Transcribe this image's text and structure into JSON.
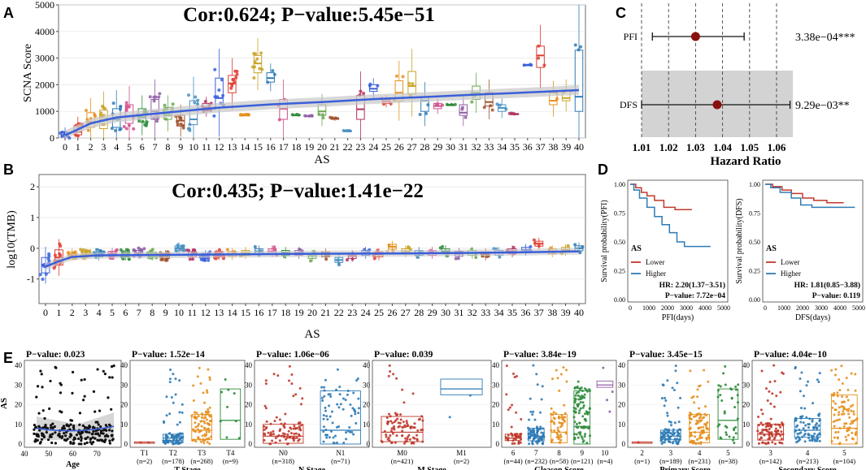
{
  "chart_data": [
    {
      "panel": "A",
      "type": "box",
      "title": "Cor:0.624; P−value:5.45e−51",
      "xlabel": "AS",
      "ylabel": "SCNA Score",
      "ylim": [
        0,
        5000
      ],
      "yticks": [
        0,
        1000,
        2000,
        3000,
        4000,
        5000
      ],
      "categories": [
        "0",
        "1",
        "2",
        "3",
        "4",
        "5",
        "6",
        "7",
        "8",
        "9",
        "10",
        "11",
        "12",
        "13",
        "14",
        "15",
        "16",
        "17",
        "18",
        "19",
        "20",
        "21",
        "22",
        "23",
        "24",
        "25",
        "26",
        "27",
        "28",
        "29",
        "30",
        "31",
        "32",
        "33",
        "34",
        "35",
        "36",
        "37",
        "38",
        "39",
        "40"
      ],
      "medians": [
        110,
        230,
        600,
        680,
        700,
        820,
        780,
        1000,
        850,
        650,
        700,
        1150,
        1500,
        2050,
        870,
        2800,
        2250,
        1100,
        870,
        820,
        1000,
        720,
        270,
        1080,
        1850,
        1380,
        1700,
        1950,
        1400,
        1200,
        1250,
        950,
        1700,
        1350,
        1130,
        900,
        2750,
        3100,
        1400,
        1500,
        1550
      ],
      "box_low": [
        40,
        120,
        400,
        350,
        400,
        550,
        600,
        700,
        700,
        450,
        500,
        1050,
        1150,
        1700,
        860,
        2450,
        2100,
        700,
        860,
        800,
        850,
        700,
        260,
        700,
        1750,
        1300,
        1400,
        1650,
        1000,
        1100,
        1240,
        850,
        1450,
        1200,
        1000,
        880,
        2740,
        2650,
        1250,
        1400,
        1000
      ],
      "box_high": [
        220,
        460,
        950,
        1050,
        1100,
        1250,
        1100,
        1450,
        1150,
        850,
        1400,
        1300,
        2250,
        2350,
        880,
        3100,
        2450,
        1450,
        880,
        850,
        1250,
        760,
        280,
        1600,
        2000,
        1450,
        2150,
        2500,
        1550,
        1300,
        1260,
        1250,
        1950,
        1700,
        1250,
        920,
        2760,
        3450,
        1700,
        1800,
        3300
      ],
      "smooth_fit": [
        [
          0,
          100
        ],
        [
          2,
          550
        ],
        [
          4,
          770
        ],
        [
          8,
          960
        ],
        [
          12,
          1140
        ],
        [
          16,
          1260
        ],
        [
          20,
          1350
        ],
        [
          24,
          1460
        ],
        [
          28,
          1540
        ],
        [
          32,
          1630
        ],
        [
          36,
          1710
        ],
        [
          40,
          1800
        ]
      ]
    },
    {
      "panel": "B",
      "type": "box",
      "title": "Cor:0.435; P−value:1.41e−22",
      "xlabel": "AS",
      "ylabel": "log10(TMB)",
      "ylim": [
        -1.8,
        2.4
      ],
      "yticks": [
        -1,
        0,
        1,
        2
      ],
      "categories": [
        "0",
        "1",
        "2",
        "3",
        "4",
        "5",
        "6",
        "7",
        "8",
        "9",
        "10",
        "11",
        "12",
        "13",
        "14",
        "15",
        "16",
        "17",
        "18",
        "19",
        "20",
        "21",
        "22",
        "23",
        "24",
        "25",
        "26",
        "27",
        "28",
        "29",
        "30",
        "31",
        "32",
        "33",
        "34",
        "35",
        "36",
        "37",
        "38",
        "39",
        "40"
      ],
      "medians": [
        -0.55,
        -0.3,
        -0.2,
        -0.2,
        -0.2,
        -0.18,
        -0.2,
        -0.15,
        -0.2,
        -0.25,
        0.0,
        -0.2,
        -0.25,
        -0.18,
        -0.18,
        -0.15,
        -0.1,
        -0.1,
        -0.15,
        -0.15,
        -0.25,
        -0.2,
        -0.38,
        -0.25,
        -0.15,
        -0.2,
        0.05,
        -0.1,
        -0.15,
        -0.15,
        -0.1,
        -0.18,
        -0.15,
        -0.2,
        -0.15,
        -0.1,
        -0.05,
        0.15,
        -0.1,
        -0.05,
        0.0
      ],
      "smooth_fit": [
        [
          0,
          -0.6
        ],
        [
          1,
          -0.42
        ],
        [
          2,
          -0.28
        ],
        [
          4,
          -0.23
        ],
        [
          8,
          -0.22
        ],
        [
          14,
          -0.2
        ],
        [
          20,
          -0.18
        ],
        [
          26,
          -0.17
        ],
        [
          32,
          -0.15
        ],
        [
          36,
          -0.13
        ],
        [
          40,
          -0.1
        ]
      ]
    },
    {
      "panel": "C",
      "type": "forest",
      "xlabel": "Hazard Ratio",
      "xticks": [
        "1.01",
        "1.02",
        "1.03",
        "1.04",
        "1.05",
        "1.06"
      ],
      "rows": [
        {
          "label": "PFI",
          "hr": 1.03,
          "low": 1.014,
          "high": 1.048,
          "pvalue": "3.38e−04***"
        },
        {
          "label": "DFS",
          "hr": 1.038,
          "low": 1.01,
          "high": 1.065,
          "pvalue": "9.29e−03**"
        }
      ]
    },
    {
      "panel": "D",
      "type": "km",
      "plots": [
        {
          "ylabel": "Survival probability(PFI)",
          "xlabel": "PFI(days)",
          "legend_title": "AS",
          "legend": [
            "Lower",
            "Higher"
          ],
          "hr_text": "HR: 2.20(1.37−3.51)",
          "p_text": "P−value: 7.72e−04",
          "xticks": [
            "0",
            "1000",
            "2000",
            "3000",
            "4000",
            "5000"
          ],
          "yticks": [
            "0.00",
            "0.25",
            "0.50",
            "0.75",
            "1.00"
          ]
        },
        {
          "ylabel": "Survival probability(DFS)",
          "xlabel": "DFS(days)",
          "legend_title": "AS",
          "legend": [
            "Lower",
            "Higher"
          ],
          "hr_text": "HR: 1.81(0.85−3.88)",
          "p_text": "P−value: 0.119",
          "xticks": [
            "0",
            "1000",
            "2000",
            "3000",
            "4000",
            "5000"
          ],
          "yticks": [
            "0.00",
            "0.25",
            "0.50",
            "0.75",
            "1.00"
          ]
        }
      ]
    },
    {
      "panel": "E",
      "type": "strip+box",
      "ylabel": "AS",
      "plots": [
        {
          "title": "P−value: 0.023",
          "xlabel": "Age",
          "ticks": [
            "40",
            "50",
            "60",
            "70"
          ],
          "sub": []
        },
        {
          "title": "P−value: 1.52e−14",
          "xlabel": "T Stage",
          "ticks": [
            "T1",
            "T2",
            "T3",
            "T4"
          ],
          "sub": [
            "(n=2)",
            "(n=178)",
            "(n=268)",
            "(n=9)"
          ]
        },
        {
          "title": "P−value: 1.06e−06",
          "xlabel": "N Stage",
          "ticks": [
            "N0",
            "N1"
          ],
          "sub": [
            "(n=318)",
            "(n=71)"
          ]
        },
        {
          "title": "P−value: 0.039",
          "xlabel": "M Stage",
          "ticks": [
            "M0",
            "M1"
          ],
          "sub": [
            "(n=421)",
            "(n=2)"
          ]
        },
        {
          "title": "P−value: 3.84e−19",
          "xlabel": "Gleason Score",
          "ticks": [
            "6",
            "7",
            "8",
            "9",
            "10"
          ],
          "sub": [
            "(n=44)",
            "(n=232)",
            "(n=58)",
            "(n=121)",
            "(n=4)"
          ]
        },
        {
          "title": "P−value: 3.45e−15",
          "xlabel": "Primary Score",
          "ticks": [
            "2",
            "3",
            "4",
            "5"
          ],
          "sub": [
            "(n=1)",
            "(n=189)",
            "(n=231)",
            "(n=38)"
          ]
        },
        {
          "title": "P−value: 4.04e−10",
          "xlabel": "Secondary Score",
          "ticks": [
            "3",
            "4",
            "5"
          ],
          "sub": [
            "(n=142)",
            "(n=213)",
            "(n=104)"
          ]
        }
      ],
      "yticks": [
        "0",
        "10",
        "20",
        "30",
        "40"
      ]
    }
  ],
  "panel_labels": [
    "A",
    "B",
    "C",
    "D",
    "E"
  ],
  "colors": {
    "fit_line": "#3a5fd9",
    "fit_band": "#c8c8c8",
    "red": "#c0392b",
    "blue": "#2e7bb6",
    "orange": "#e6901e",
    "green": "#2e8b3a",
    "purple": "#8e5ea2",
    "forest_point": "#8b1010",
    "forest_band": "#d3d3d3"
  }
}
